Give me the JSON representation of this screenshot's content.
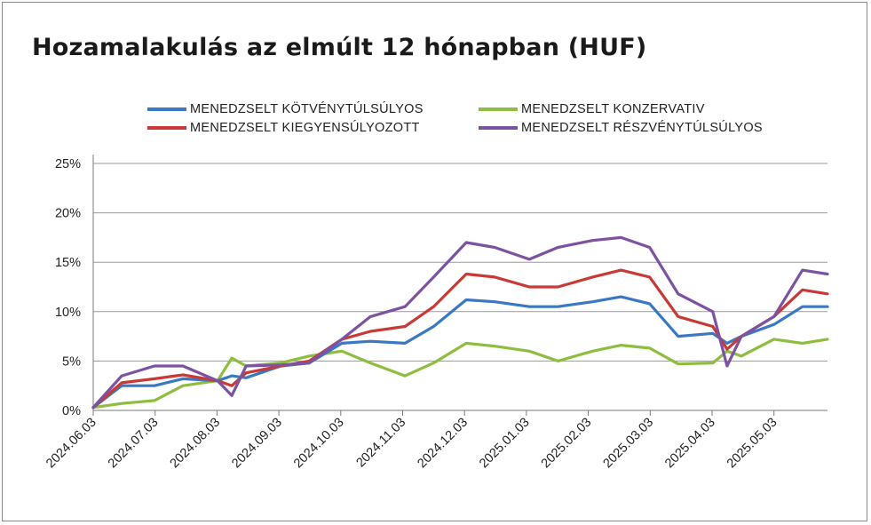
{
  "title": "Hozamalakulás az elmúlt 12 hónapban (HUF)",
  "chart_data": {
    "type": "line",
    "title": "Hozamalakulás az elmúlt 12 hónapban (HUF)",
    "xlabel": "",
    "ylabel": "",
    "ylim": [
      0,
      25
    ],
    "y_ticks": [
      "0%",
      "5%",
      "10%",
      "15%",
      "20%",
      "25%"
    ],
    "y_tick_values": [
      0,
      5,
      10,
      15,
      20,
      25
    ],
    "x_ticks": [
      "2024.06.03",
      "2024.07.03",
      "2024.08.03",
      "2024.09.03",
      "2024.10.03",
      "2024.11.03",
      "2024.12.03",
      "2025.01.03",
      "2025.02.03",
      "2025.03.03",
      "2025.04.03",
      "2025.05.03"
    ],
    "grid": "horizontal",
    "legend_position": "top",
    "x": [
      "2024.06.03",
      "2024.06.17",
      "2024.07.03",
      "2024.07.17",
      "2024.08.03",
      "2024.08.10",
      "2024.08.17",
      "2024.09.03",
      "2024.09.17",
      "2024.10.03",
      "2024.10.17",
      "2024.11.03",
      "2024.11.17",
      "2024.12.03",
      "2024.12.17",
      "2025.01.03",
      "2025.01.17",
      "2025.02.03",
      "2025.02.17",
      "2025.03.03",
      "2025.03.17",
      "2025.04.03",
      "2025.04.10",
      "2025.04.17",
      "2025.05.03",
      "2025.05.17",
      "2025.05.30"
    ],
    "series": [
      {
        "name": "MENEDZSELT KÖTVÉNYTÚLSÚLYOS",
        "color": "#3a78c3",
        "values": [
          0.3,
          2.5,
          2.5,
          3.2,
          3.0,
          3.5,
          3.3,
          4.5,
          4.8,
          6.8,
          7.0,
          6.8,
          8.5,
          11.2,
          11.0,
          10.5,
          10.5,
          11.0,
          11.5,
          10.8,
          7.5,
          7.8,
          6.8,
          7.5,
          8.7,
          10.5,
          10.5
        ]
      },
      {
        "name": "MENEDZSELT KONZERVATIV",
        "color": "#8ebd3f",
        "values": [
          0.3,
          0.7,
          1.0,
          2.5,
          3.0,
          5.3,
          4.5,
          4.8,
          5.5,
          6.0,
          4.8,
          3.5,
          4.8,
          6.8,
          6.5,
          6.0,
          5.0,
          6.0,
          6.6,
          6.3,
          4.7,
          4.8,
          6.0,
          5.5,
          7.2,
          6.8,
          7.2
        ]
      },
      {
        "name": "MENEDZSELT KIEGYENSÚLYOZOTT",
        "color": "#c93a36",
        "values": [
          0.3,
          2.8,
          3.2,
          3.6,
          3.0,
          2.5,
          3.8,
          4.5,
          5.0,
          7.2,
          8.0,
          8.5,
          10.5,
          13.8,
          13.5,
          12.5,
          12.5,
          13.5,
          14.2,
          13.5,
          9.5,
          8.5,
          6.2,
          7.5,
          9.5,
          12.2,
          11.8
        ]
      },
      {
        "name": "MENEDZSELT RÉSZVÉNYTÚLSÚLYOS",
        "color": "#7d52a0",
        "values": [
          0.3,
          3.5,
          4.5,
          4.5,
          3.0,
          1.5,
          4.5,
          4.6,
          4.8,
          7.2,
          9.5,
          10.5,
          13.5,
          17.0,
          16.5,
          15.3,
          16.5,
          17.2,
          17.5,
          16.5,
          11.8,
          10.0,
          4.5,
          7.5,
          9.5,
          14.2,
          13.8
        ]
      }
    ]
  }
}
